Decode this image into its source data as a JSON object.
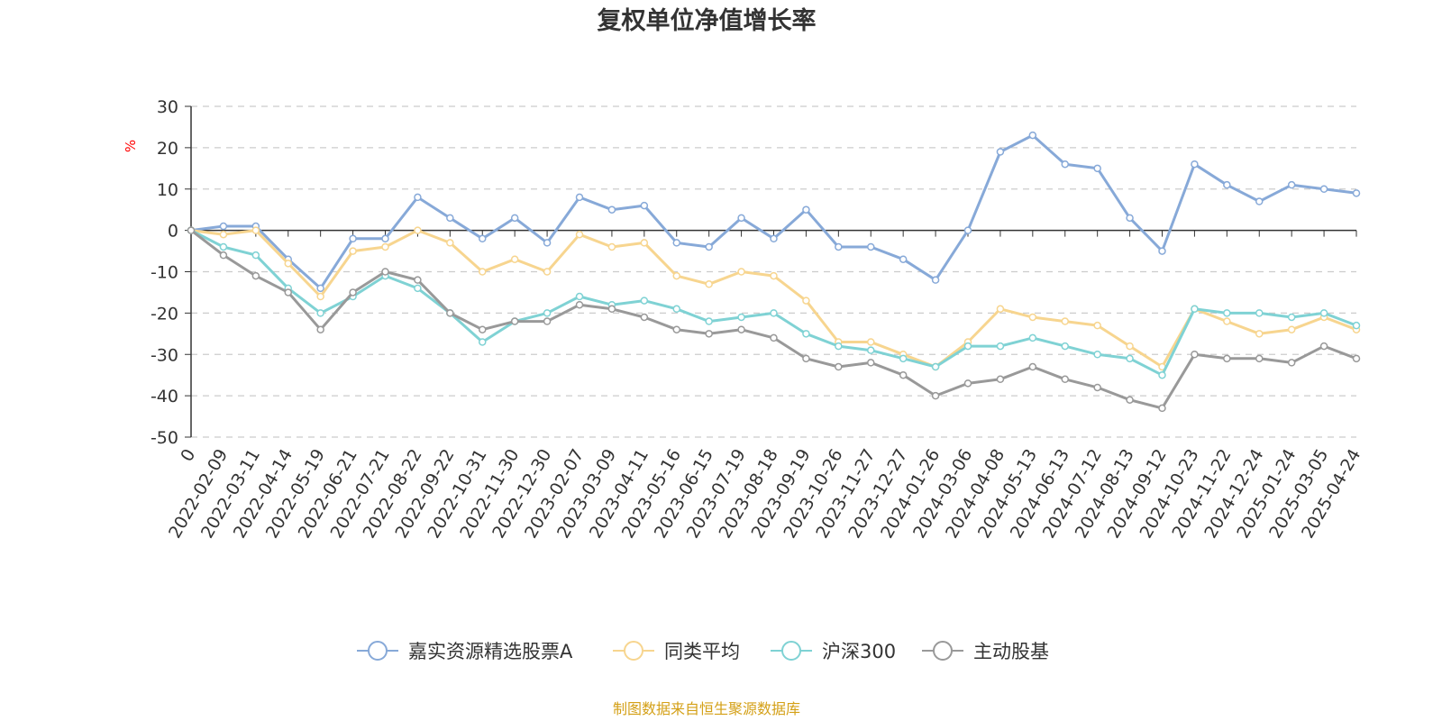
{
  "chart_data": {
    "type": "line",
    "title": "复权单位净值增长率",
    "ylabel": "%",
    "ylim": [
      -50,
      30
    ],
    "yticks": [
      30,
      20,
      10,
      0,
      -10,
      -20,
      -30,
      -40,
      -50
    ],
    "grid": true,
    "legend_position": "bottom",
    "x": [
      "0",
      "2022-02-09",
      "2022-03-11",
      "2022-04-14",
      "2022-05-19",
      "2022-06-21",
      "2022-07-21",
      "2022-08-22",
      "2022-09-22",
      "2022-10-31",
      "2022-11-30",
      "2022-12-30",
      "2023-02-07",
      "2023-03-09",
      "2023-04-11",
      "2023-05-16",
      "2023-06-15",
      "2023-07-19",
      "2023-08-18",
      "2023-09-19",
      "2023-10-26",
      "2023-11-27",
      "2023-12-27",
      "2024-01-26",
      "2024-03-06",
      "2024-04-08",
      "2024-05-13",
      "2024-06-13",
      "2024-07-12",
      "2024-08-13",
      "2024-09-12",
      "2024-10-23",
      "2024-11-22",
      "2024-12-24",
      "2025-01-24",
      "2025-03-05",
      "2025-04-24"
    ],
    "series": [
      {
        "name": "嘉实资源精选股票A",
        "color": "#87a9d8",
        "values": [
          0,
          1,
          1,
          -7,
          -14,
          -2,
          -2,
          8,
          3,
          -2,
          3,
          -3,
          8,
          5,
          6,
          -3,
          -4,
          3,
          -2,
          5,
          -4,
          -4,
          -7,
          -12,
          0,
          19,
          23,
          16,
          15,
          3,
          -5,
          16,
          11,
          7,
          11,
          10,
          9
        ]
      },
      {
        "name": "同类平均",
        "color": "#f7d58f",
        "values": [
          0,
          -1,
          0,
          -8,
          -16,
          -5,
          -4,
          0,
          -3,
          -10,
          -7,
          -10,
          -1,
          -4,
          -3,
          -11,
          -13,
          -10,
          -11,
          -17,
          -27,
          -27,
          -30,
          -33,
          -27,
          -19,
          -21,
          -22,
          -23,
          -28,
          -33,
          -19,
          -22,
          -25,
          -24,
          -21,
          -24
        ]
      },
      {
        "name": "沪深300",
        "color": "#7fd2d4",
        "values": [
          0,
          -4,
          -6,
          -14,
          -20,
          -16,
          -11,
          -14,
          -20,
          -27,
          -22,
          -20,
          -16,
          -18,
          -17,
          -19,
          -22,
          -21,
          -20,
          -25,
          -28,
          -29,
          -31,
          -33,
          -28,
          -28,
          -26,
          -28,
          -30,
          -31,
          -35,
          -19,
          -20,
          -20,
          -21,
          -20,
          -23
        ]
      },
      {
        "name": "主动股基",
        "color": "#999999",
        "values": [
          0,
          -6,
          -11,
          -15,
          -24,
          -15,
          -10,
          -12,
          -20,
          -24,
          -22,
          -22,
          -18,
          -19,
          -21,
          -24,
          -25,
          -24,
          -26,
          -31,
          -33,
          -32,
          -35,
          -40,
          -37,
          -36,
          -33,
          -36,
          -38,
          -41,
          -43,
          -30,
          -31,
          -31,
          -32,
          -28,
          -31
        ]
      }
    ]
  },
  "source_note": "制图数据来自恒生聚源数据库"
}
